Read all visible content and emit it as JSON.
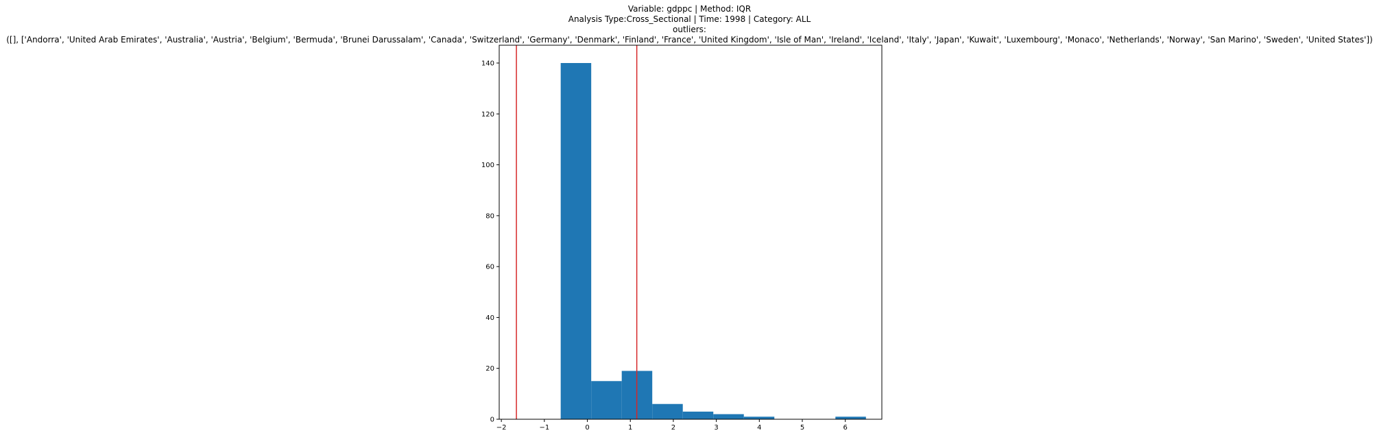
{
  "title_lines": [
    "Variable: gdppc | Method: IQR",
    "Analysis Type:Cross_Sectional | Time: 1998 | Category: ALL",
    "outliers:",
    "([], ['Andorra', 'United Arab Emirates', 'Australia', 'Austria', 'Belgium', 'Bermuda', 'Brunei Darussalam', 'Canada', 'Switzerland', 'Germany', 'Denmark', 'Finland', 'France', 'United Kingdom', 'Isle of Man', 'Ireland', 'Iceland', 'Italy', 'Japan', 'Kuwait', 'Luxembourg', 'Monaco', 'Netherlands', 'Norway', 'San Marino', 'Sweden', 'United States'])"
  ],
  "chart_data": {
    "type": "bar",
    "subtype": "histogram",
    "bin_edges": [
      -0.62,
      0.09,
      0.8,
      1.51,
      2.22,
      2.93,
      3.64,
      4.35,
      5.06,
      5.77,
      6.48
    ],
    "values": [
      140,
      15,
      19,
      6,
      3,
      2,
      1,
      0,
      0,
      1
    ],
    "bar_color": "#1f77b4",
    "threshold_lines": [
      -1.65,
      1.15
    ],
    "threshold_color": "#d62728",
    "xlim": [
      -2.05,
      6.85
    ],
    "ylim": [
      0,
      147
    ],
    "xticks": [
      -2,
      -1,
      0,
      1,
      2,
      3,
      4,
      5,
      6
    ],
    "xtick_labels": [
      "−2",
      "−1",
      "0",
      "1",
      "2",
      "3",
      "4",
      "5",
      "6"
    ],
    "yticks": [
      0,
      20,
      40,
      60,
      80,
      100,
      120,
      140
    ],
    "ytick_labels": [
      "0",
      "20",
      "40",
      "60",
      "80",
      "100",
      "120",
      "140"
    ],
    "xlabel": "",
    "ylabel": "",
    "grid": false
  }
}
